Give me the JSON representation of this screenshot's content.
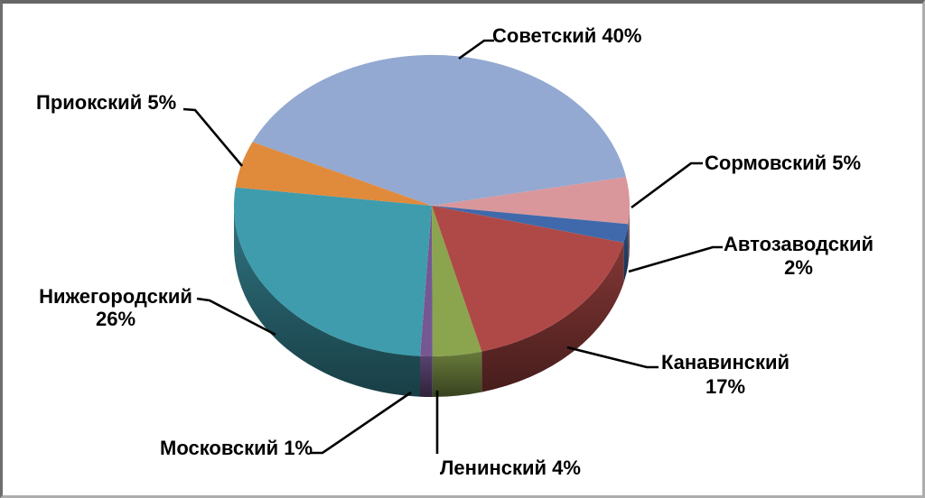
{
  "chart_data": {
    "type": "pie",
    "style": "3d-exploded-labels",
    "unit": "%",
    "start_angle_deg": 155,
    "direction": "clockwise",
    "background": "#FFFFFF",
    "frame_border_color": "#6E6E6E",
    "label_color": "#000000",
    "leader_line_color": "#000000",
    "slices": [
      {
        "key": "sovetsky",
        "name": "Советский",
        "value": 40,
        "label_lines": [
          "Советский 40%"
        ],
        "color": "#93A9D1"
      },
      {
        "key": "sormovsky",
        "name": "Сормовский",
        "value": 5,
        "label_lines": [
          "Сормовский 5%"
        ],
        "color": "#D9979B"
      },
      {
        "key": "avtozavodsky",
        "name": "Автозаводский",
        "value": 2,
        "label_lines": [
          "Автозаводский",
          "2%"
        ],
        "color": "#3F69AA"
      },
      {
        "key": "kanavinsky",
        "name": "Канавинский",
        "value": 17,
        "label_lines": [
          "Канавинский",
          "17%"
        ],
        "color": "#AF4947"
      },
      {
        "key": "leninsky",
        "name": "Ленинский",
        "value": 4,
        "label_lines": [
          "Ленинский 4%"
        ],
        "color": "#8BA44E"
      },
      {
        "key": "moskovsky",
        "name": "Московский",
        "value": 1,
        "label_lines": [
          "Московский 1%"
        ],
        "color": "#755892"
      },
      {
        "key": "nizhegorodsky",
        "name": "Нижегородский",
        "value": 26,
        "label_lines": [
          "Нижегородский",
          "26%"
        ],
        "color": "#3E9CAD"
      },
      {
        "key": "prioksky",
        "name": "Приокский",
        "value": 5,
        "label_lines": [
          "Приокский 5%"
        ],
        "color": "#E08A3C"
      }
    ]
  }
}
